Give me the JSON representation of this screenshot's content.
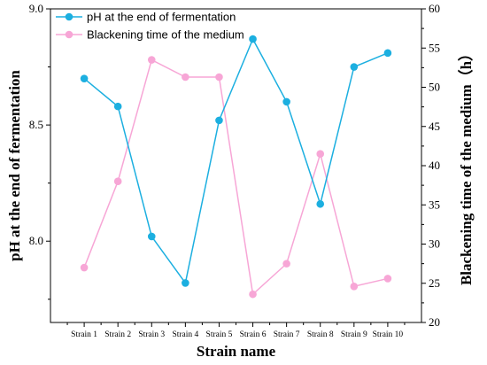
{
  "chart_data": {
    "type": "line",
    "categories": [
      "Strain 1",
      "Strain 2",
      "Strain 3",
      "Strain 4",
      "Strain 5",
      "Strain 6",
      "Strain 7",
      "Strain 8",
      "Strain 9",
      "Strain 10"
    ],
    "xlabel": "Strain name",
    "ylabel": "pH at the end of fermentation",
    "y2label": "Blackening time of the medium（h）",
    "ylim": [
      7.65,
      9.0
    ],
    "y2lim": [
      20,
      60
    ],
    "yticks": [
      8.0,
      8.5,
      9.0
    ],
    "yticklabels": [
      "8.0",
      "8.5",
      "9.0"
    ],
    "y2ticks": [
      20,
      25,
      30,
      35,
      40,
      45,
      50,
      55,
      60
    ],
    "grid": false,
    "legend_position": "top-left",
    "series": [
      {
        "name": "pH at the end of fermentation",
        "axis": "left",
        "color": "#1cafe0",
        "values": [
          8.7,
          8.58,
          8.02,
          7.82,
          8.52,
          8.87,
          8.6,
          8.16,
          8.75,
          8.81
        ]
      },
      {
        "name": "Blackening time of the medium",
        "axis": "right",
        "color": "#f7a6d6",
        "values": [
          27.0,
          38.0,
          53.5,
          51.3,
          51.3,
          23.6,
          27.5,
          41.5,
          24.6,
          25.6
        ]
      }
    ]
  }
}
